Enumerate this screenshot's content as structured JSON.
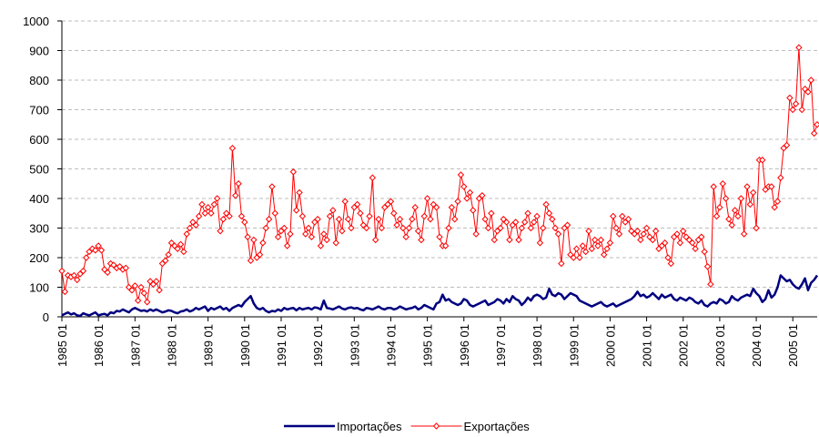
{
  "chart_data": {
    "type": "line",
    "categories": [
      "1985 01",
      null,
      null,
      null,
      null,
      null,
      null,
      null,
      null,
      null,
      null,
      null,
      "1986 01",
      null,
      null,
      null,
      null,
      null,
      null,
      null,
      null,
      null,
      null,
      null,
      "1987 01",
      null,
      null,
      null,
      null,
      null,
      null,
      null,
      null,
      null,
      null,
      null,
      "1988 01",
      null,
      null,
      null,
      null,
      null,
      null,
      null,
      null,
      null,
      null,
      null,
      "1989 01",
      null,
      null,
      null,
      null,
      null,
      null,
      null,
      null,
      null,
      null,
      null,
      "1990 01",
      null,
      null,
      null,
      null,
      null,
      null,
      null,
      null,
      null,
      null,
      null,
      "1991 01",
      null,
      null,
      null,
      null,
      null,
      null,
      null,
      null,
      null,
      null,
      null,
      "1992 01",
      null,
      null,
      null,
      null,
      null,
      null,
      null,
      null,
      null,
      null,
      null,
      "1993 01",
      null,
      null,
      null,
      null,
      null,
      null,
      null,
      null,
      null,
      null,
      null,
      "1994 01",
      null,
      null,
      null,
      null,
      null,
      null,
      null,
      null,
      null,
      null,
      null,
      "1995 01",
      null,
      null,
      null,
      null,
      null,
      null,
      null,
      null,
      null,
      null,
      null,
      "1996 01",
      null,
      null,
      null,
      null,
      null,
      null,
      null,
      null,
      null,
      null,
      null,
      "1997 01",
      null,
      null,
      null,
      null,
      null,
      null,
      null,
      null,
      null,
      null,
      null,
      "1998 01",
      null,
      null,
      null,
      null,
      null,
      null,
      null,
      null,
      null,
      null,
      null,
      "1999 01",
      null,
      null,
      null,
      null,
      null,
      null,
      null,
      null,
      null,
      null,
      null,
      "2000 01",
      null,
      null,
      null,
      null,
      null,
      null,
      null,
      null,
      null,
      null,
      null,
      "2001 01",
      null,
      null,
      null,
      null,
      null,
      null,
      null,
      null,
      null,
      null,
      null,
      "2002 01",
      null,
      null,
      null,
      null,
      null,
      null,
      null,
      null,
      null,
      null,
      null,
      "2003 01",
      null,
      null,
      null,
      null,
      null,
      null,
      null,
      null,
      null,
      null,
      null,
      "2004 01",
      null,
      null,
      null,
      null,
      null,
      null,
      null,
      null,
      null,
      null,
      null,
      "2005 01",
      null,
      null,
      null,
      null,
      null,
      null,
      null,
      null
    ],
    "series": [
      {
        "name": "Importações",
        "color": "#000080",
        "marker": false,
        "values": [
          5,
          10,
          15,
          8,
          12,
          5,
          3,
          12,
          8,
          5,
          10,
          15,
          5,
          8,
          10,
          5,
          15,
          12,
          20,
          18,
          25,
          20,
          15,
          25,
          30,
          25,
          20,
          22,
          18,
          25,
          20,
          25,
          20,
          15,
          18,
          22,
          20,
          15,
          12,
          18,
          20,
          25,
          18,
          22,
          30,
          25,
          30,
          35,
          20,
          30,
          25,
          30,
          35,
          25,
          30,
          20,
          30,
          35,
          40,
          35,
          50,
          60,
          70,
          45,
          30,
          25,
          30,
          20,
          15,
          20,
          18,
          25,
          20,
          30,
          25,
          28,
          30,
          22,
          30,
          25,
          28,
          30,
          25,
          32,
          30,
          25,
          55,
          30,
          28,
          25,
          30,
          35,
          28,
          25,
          30,
          32,
          28,
          30,
          25,
          22,
          30,
          28,
          25,
          30,
          35,
          28,
          25,
          30,
          30,
          25,
          28,
          35,
          30,
          25,
          28,
          30,
          35,
          25,
          30,
          40,
          35,
          30,
          25,
          45,
          50,
          75,
          55,
          60,
          50,
          45,
          40,
          45,
          60,
          55,
          40,
          35,
          40,
          45,
          50,
          55,
          40,
          45,
          50,
          60,
          55,
          45,
          60,
          50,
          70,
          60,
          55,
          40,
          50,
          65,
          55,
          70,
          75,
          70,
          60,
          65,
          95,
          75,
          70,
          80,
          75,
          60,
          70,
          80,
          75,
          70,
          55,
          50,
          45,
          40,
          35,
          40,
          45,
          50,
          40,
          35,
          40,
          45,
          35,
          40,
          45,
          50,
          55,
          60,
          70,
          85,
          70,
          75,
          65,
          70,
          80,
          70,
          60,
          75,
          65,
          70,
          75,
          60,
          55,
          65,
          60,
          55,
          65,
          60,
          50,
          45,
          55,
          40,
          35,
          45,
          50,
          45,
          60,
          55,
          45,
          50,
          70,
          60,
          55,
          65,
          70,
          75,
          70,
          95,
          80,
          70,
          50,
          60,
          90,
          65,
          75,
          100,
          140,
          130,
          120,
          125,
          110,
          100,
          95,
          110,
          130,
          90,
          115,
          125,
          140
        ]
      },
      {
        "name": "Exportações",
        "color": "#ff0000",
        "marker": true,
        "values": [
          155,
          85,
          140,
          135,
          140,
          125,
          145,
          155,
          200,
          220,
          230,
          225,
          240,
          225,
          160,
          150,
          180,
          175,
          165,
          170,
          160,
          165,
          100,
          90,
          105,
          55,
          100,
          80,
          50,
          120,
          110,
          120,
          90,
          180,
          190,
          210,
          250,
          240,
          230,
          245,
          220,
          280,
          300,
          320,
          310,
          340,
          380,
          350,
          370,
          350,
          380,
          400,
          290,
          330,
          350,
          340,
          570,
          410,
          450,
          340,
          320,
          270,
          190,
          260,
          200,
          210,
          250,
          300,
          330,
          440,
          350,
          270,
          290,
          300,
          240,
          280,
          490,
          360,
          420,
          340,
          280,
          300,
          270,
          320,
          330,
          240,
          280,
          260,
          340,
          360,
          250,
          330,
          290,
          390,
          330,
          300,
          370,
          380,
          350,
          310,
          300,
          340,
          470,
          260,
          330,
          300,
          370,
          380,
          390,
          350,
          310,
          330,
          300,
          270,
          300,
          330,
          370,
          290,
          260,
          340,
          400,
          330,
          380,
          370,
          270,
          240,
          240,
          300,
          370,
          330,
          390,
          480,
          440,
          400,
          420,
          360,
          280,
          400,
          410,
          330,
          300,
          350,
          260,
          290,
          300,
          330,
          320,
          260,
          310,
          320,
          260,
          300,
          320,
          350,
          300,
          320,
          340,
          250,
          300,
          380,
          350,
          330,
          300,
          280,
          180,
          300,
          310,
          210,
          200,
          230,
          200,
          240,
          220,
          290,
          230,
          260,
          240,
          260,
          210,
          230,
          250,
          340,
          300,
          280,
          340,
          320,
          330,
          290,
          280,
          290,
          260,
          280,
          300,
          270,
          260,
          290,
          230,
          240,
          250,
          200,
          180,
          270,
          280,
          250,
          290,
          270,
          260,
          250,
          230,
          260,
          270,
          220,
          170,
          110,
          440,
          340,
          370,
          450,
          400,
          330,
          310,
          360,
          340,
          400,
          280,
          440,
          380,
          420,
          300,
          530,
          530,
          430,
          440,
          440,
          370,
          390,
          470,
          570,
          580,
          740,
          700,
          720,
          910,
          700,
          770,
          760,
          800,
          620,
          650
        ]
      }
    ],
    "ylim": [
      0,
      1000
    ],
    "yticks": [
      0,
      100,
      200,
      300,
      400,
      500,
      600,
      700,
      800,
      900,
      1000
    ],
    "grid": true,
    "legend": "bottom"
  }
}
